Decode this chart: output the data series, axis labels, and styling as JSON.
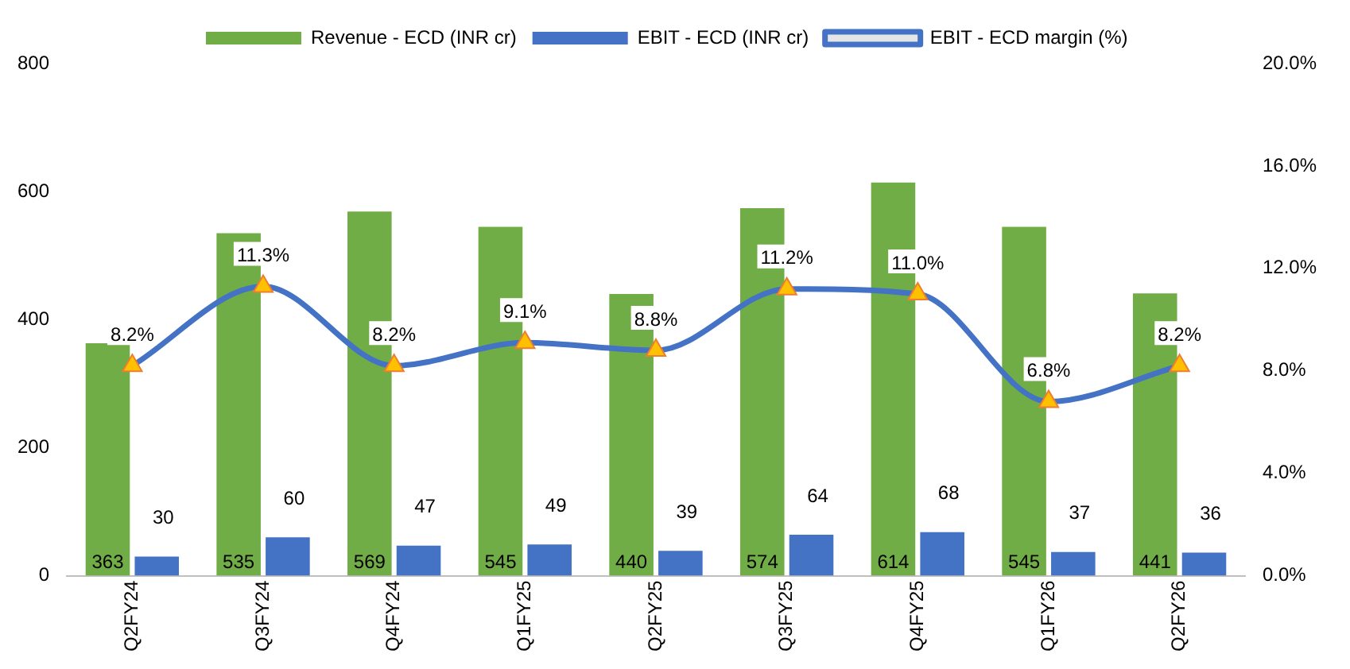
{
  "chart_data": {
    "type": "bar",
    "categories": [
      "Q2FY24",
      "Q3FY24",
      "Q4FY24",
      "Q1FY25",
      "Q2FY25",
      "Q3FY25",
      "Q4FY25",
      "Q1FY26",
      "Q2FY26"
    ],
    "series": [
      {
        "name": "Revenue - ECD (INR cr)",
        "color": "#70ad47",
        "values": [
          363,
          535,
          569,
          545,
          440,
          574,
          614,
          545,
          441
        ],
        "value_labels": [
          "363",
          "535",
          "569",
          "545",
          "440",
          "574",
          "614",
          "545",
          "441"
        ]
      },
      {
        "name": "EBIT - ECD (INR cr)",
        "color": "#4472c4",
        "values": [
          30,
          60,
          47,
          49,
          39,
          64,
          68,
          37,
          36
        ],
        "value_labels": [
          "30",
          "60",
          "47",
          "49",
          "39",
          "64",
          "68",
          "37",
          "36"
        ]
      },
      {
        "name": "EBIT - ECD margin (%)",
        "type": "line",
        "axis": "y2",
        "color": "#4472c4",
        "marker": "triangle",
        "values": [
          8.2,
          11.3,
          8.2,
          9.1,
          8.8,
          11.2,
          11.0,
          6.8,
          8.2
        ],
        "value_labels": [
          "8.2%",
          "11.3%",
          "8.2%",
          "9.1%",
          "8.8%",
          "11.2%",
          "11.0%",
          "6.8%",
          "8.2%"
        ]
      }
    ],
    "ylim": [
      0,
      800
    ],
    "yticks": [
      0,
      200,
      400,
      600,
      800
    ],
    "y2lim": [
      0,
      20
    ],
    "y2ticks": [
      {
        "value": 0,
        "label": "0.0%"
      },
      {
        "value": 4,
        "label": "4.0%"
      },
      {
        "value": 8,
        "label": "8.0%"
      },
      {
        "value": 12,
        "label": "12.0%"
      },
      {
        "value": 16,
        "label": "16.0%"
      },
      {
        "value": 20,
        "label": "20.0%"
      }
    ],
    "grid": false,
    "legend": "top"
  }
}
